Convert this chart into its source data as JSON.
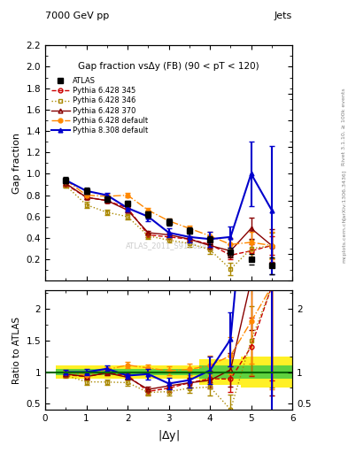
{
  "title_top": "7000 GeV pp",
  "title_right": "Jets",
  "plot_title": "Gap fraction vsΔy (FB) (90 < pT < 120)",
  "watermark": "ATLAS_2011_S9126244",
  "right_label": "Rivet 3.1.10, ≥ 100k events",
  "arxiv_label": "[arXiv:1306.3436]",
  "mcplots_label": "mcplots.cern.ch",
  "x": [
    0.5,
    1.0,
    1.5,
    2.0,
    2.5,
    3.0,
    3.5,
    4.0,
    4.5,
    5.0,
    5.5
  ],
  "atlas_y": [
    0.94,
    0.84,
    0.76,
    0.72,
    0.62,
    0.55,
    0.47,
    0.38,
    0.27,
    0.2,
    0.14
  ],
  "atlas_ey": [
    0.03,
    0.03,
    0.025,
    0.025,
    0.03,
    0.03,
    0.03,
    0.04,
    0.04,
    0.05,
    0.08
  ],
  "p345_y": [
    0.9,
    0.78,
    0.75,
    0.68,
    0.43,
    0.41,
    0.39,
    0.34,
    0.24,
    0.28,
    0.33
  ],
  "p345_ey": [
    0.02,
    0.02,
    0.02,
    0.02,
    0.02,
    0.02,
    0.02,
    0.03,
    0.04,
    0.06,
    0.09
  ],
  "p346_y": [
    0.89,
    0.71,
    0.64,
    0.6,
    0.42,
    0.38,
    0.35,
    0.29,
    0.11,
    0.3,
    0.33
  ],
  "p346_ey": [
    0.02,
    0.025,
    0.025,
    0.025,
    0.025,
    0.025,
    0.03,
    0.04,
    0.06,
    0.08,
    0.12
  ],
  "p370_y": [
    0.91,
    0.78,
    0.75,
    0.66,
    0.45,
    0.43,
    0.39,
    0.33,
    0.28,
    0.49,
    0.33
  ],
  "p370_ey": [
    0.02,
    0.02,
    0.02,
    0.02,
    0.02,
    0.02,
    0.025,
    0.035,
    0.06,
    0.1,
    0.15
  ],
  "pdef_y": [
    0.94,
    0.8,
    0.79,
    0.8,
    0.66,
    0.56,
    0.49,
    0.42,
    0.34,
    0.36,
    0.33
  ],
  "pdef_ey": [
    0.02,
    0.02,
    0.02,
    0.02,
    0.02,
    0.02,
    0.025,
    0.035,
    0.06,
    0.1,
    0.13
  ],
  "p8def_y": [
    0.94,
    0.84,
    0.8,
    0.68,
    0.6,
    0.45,
    0.41,
    0.39,
    0.41,
    1.0,
    0.66
  ],
  "p8def_ey": [
    0.02,
    0.025,
    0.025,
    0.03,
    0.04,
    0.04,
    0.05,
    0.07,
    0.1,
    0.3,
    0.6
  ],
  "atlas_band_green": [
    0.05,
    0.05,
    0.05,
    0.05,
    0.05,
    0.05,
    0.05,
    0.1,
    0.1,
    0.1,
    0.1
  ],
  "atlas_band_yellow": [
    0.1,
    0.1,
    0.1,
    0.1,
    0.1,
    0.1,
    0.1,
    0.2,
    0.2,
    0.25,
    0.25
  ],
  "colors": {
    "atlas": "#000000",
    "p345": "#cc0000",
    "p346": "#aa8800",
    "p370": "#880000",
    "pdef": "#ff8800",
    "p8def": "#0000cc"
  },
  "ylim_main": [
    0.0,
    2.2
  ],
  "ylim_ratio": [
    0.4,
    2.3
  ],
  "xlabel": "|$\\Delta$y|",
  "ylabel_main": "Gap fraction",
  "ylabel_ratio": "Ratio to ATLAS"
}
